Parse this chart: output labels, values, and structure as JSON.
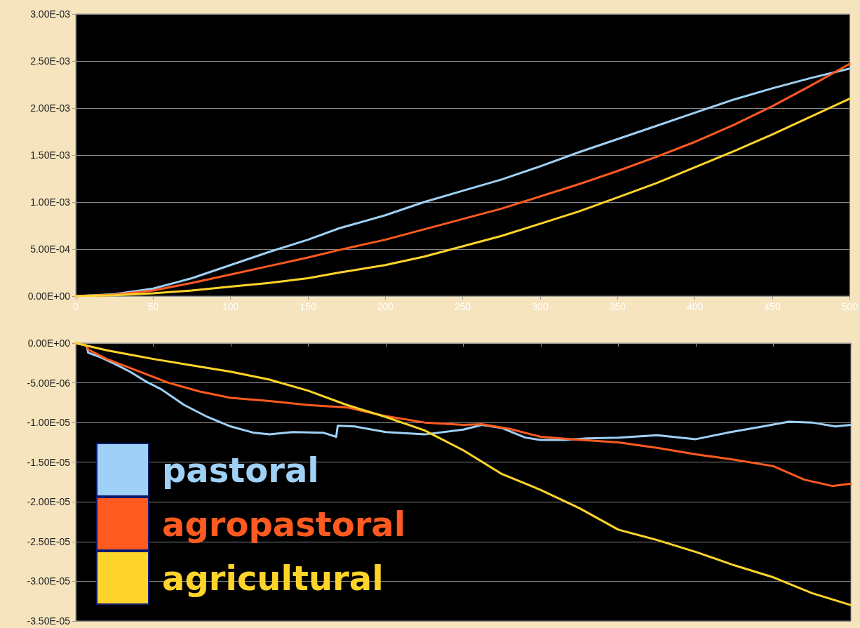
{
  "chart_data": [
    {
      "type": "line",
      "xlim": [
        0,
        500
      ],
      "xticks": [
        0,
        50,
        100,
        150,
        200,
        250,
        300,
        350,
        400,
        450,
        500
      ],
      "ylim": [
        0,
        0.003
      ],
      "yticks": [
        {
          "value": 0,
          "label": "0.00E+00"
        },
        {
          "value": 0.0005,
          "label": "5.00E-04"
        },
        {
          "value": 0.001,
          "label": "1.00E-03"
        },
        {
          "value": 0.0015,
          "label": "1.50E-03"
        },
        {
          "value": 0.002,
          "label": "2.00E-03"
        },
        {
          "value": 0.0025,
          "label": "2.50E-03"
        },
        {
          "value": 0.003,
          "label": "3.00E-03"
        }
      ],
      "grid": "y",
      "legend": false,
      "marker": "none",
      "line_style": "solid",
      "x": [
        0,
        25,
        50,
        75,
        100,
        125,
        150,
        170,
        200,
        225,
        250,
        275,
        300,
        325,
        350,
        375,
        400,
        425,
        450,
        475,
        500
      ],
      "series": [
        {
          "color": "#9fd0f5",
          "values": [
            0,
            2e-05,
            8e-05,
            0.00019,
            0.00033,
            0.00047,
            0.0006,
            0.00072,
            0.00086,
            0.001,
            0.00112,
            0.00124,
            0.00138,
            0.00153,
            0.00167,
            0.00181,
            0.00195,
            0.00209,
            0.00221,
            0.00232,
            0.00242
          ]
        },
        {
          "color": "#ff5a1f",
          "values": [
            0,
            1.5e-05,
            6e-05,
            0.00014,
            0.00023,
            0.00032,
            0.00041,
            0.00049,
            0.0006,
            0.00071,
            0.00082,
            0.00093,
            0.00106,
            0.00119,
            0.00133,
            0.00148,
            0.00164,
            0.00182,
            0.00202,
            0.00224,
            0.00247
          ]
        },
        {
          "color": "#ffd42a",
          "values": [
            0,
            1e-05,
            3e-05,
            6e-05,
            0.0001,
            0.00014,
            0.00019,
            0.00025,
            0.00033,
            0.00042,
            0.00053,
            0.00064,
            0.00077,
            0.0009,
            0.00105,
            0.0012,
            0.00137,
            0.00154,
            0.00172,
            0.00191,
            0.0021
          ]
        }
      ]
    },
    {
      "type": "line",
      "xlim": [
        0,
        500
      ],
      "xticks": [
        0,
        50,
        100,
        150,
        200,
        250,
        300,
        350,
        400,
        450,
        500
      ],
      "ylim": [
        -3.5e-05,
        0
      ],
      "yticks": [
        {
          "value": 0,
          "label": "0.00E+00"
        },
        {
          "value": -5e-06,
          "label": "-5.00E-06"
        },
        {
          "value": -1e-05,
          "label": "-1.00E-05"
        },
        {
          "value": -1.5e-05,
          "label": "-1.50E-05"
        },
        {
          "value": -2e-05,
          "label": "-2.00E-05"
        },
        {
          "value": -2.5e-05,
          "label": "-2.50E-05"
        },
        {
          "value": -3e-05,
          "label": "-3.00E-05"
        },
        {
          "value": -3.5e-05,
          "label": "-3.50E-05"
        }
      ],
      "tick_labels": "y",
      "grid": "y",
      "legend": "bottom left",
      "marker": "none",
      "line_style": "solid",
      "series": [
        {
          "name": "pastoral",
          "color": "#9fd0f5",
          "x": [
            0,
            7,
            8,
            15,
            25,
            35,
            45,
            55,
            70,
            85,
            100,
            115,
            125,
            140,
            160,
            168,
            169,
            180,
            200,
            225,
            250,
            262,
            275,
            290,
            300,
            315,
            330,
            350,
            375,
            400,
            420,
            440,
            460,
            475,
            490,
            500
          ],
          "values": [
            0,
            -3e-07,
            -1.2e-06,
            -1.7e-06,
            -2.6e-06,
            -3.6e-06,
            -4.8e-06,
            -5.8e-06,
            -7.8e-06,
            -9.3e-06,
            -1.05e-05,
            -1.13e-05,
            -1.15e-05,
            -1.12e-05,
            -1.13e-05,
            -1.18e-05,
            -1.04e-05,
            -1.05e-05,
            -1.12e-05,
            -1.15e-05,
            -1.09e-05,
            -1.03e-05,
            -1.07e-05,
            -1.19e-05,
            -1.22e-05,
            -1.22e-05,
            -1.2e-05,
            -1.19e-05,
            -1.16e-05,
            -1.21e-05,
            -1.13e-05,
            -1.06e-05,
            -9.9e-06,
            -1e-05,
            -1.05e-05,
            -1.03e-05
          ]
        },
        {
          "name": "agropastoral",
          "color": "#ff5a1f",
          "x": [
            0,
            7,
            8,
            20,
            40,
            60,
            80,
            100,
            125,
            150,
            175,
            200,
            225,
            250,
            262,
            280,
            300,
            320,
            350,
            375,
            400,
            425,
            450,
            470,
            488,
            500
          ],
          "values": [
            0,
            -3e-07,
            -8e-07,
            -2e-06,
            -3.5e-06,
            -5e-06,
            -6.1e-06,
            -6.9e-06,
            -7.3e-06,
            -7.8e-06,
            -8.1e-06,
            -9.2e-06,
            -1e-05,
            -1.03e-05,
            -1.02e-05,
            -1.08e-05,
            -1.18e-05,
            -1.21e-05,
            -1.25e-05,
            -1.32e-05,
            -1.4e-05,
            -1.47e-05,
            -1.55e-05,
            -1.72e-05,
            -1.8e-05,
            -1.77e-05
          ]
        },
        {
          "name": "agricultural",
          "color": "#ffd42a",
          "x": [
            0,
            20,
            50,
            75,
            100,
            125,
            150,
            175,
            200,
            225,
            250,
            275,
            300,
            325,
            350,
            375,
            400,
            425,
            450,
            475,
            500
          ],
          "values": [
            0,
            -9e-07,
            -2e-06,
            -2.8e-06,
            -3.6e-06,
            -4.6e-06,
            -6e-06,
            -7.8e-06,
            -9.3e-06,
            -1.1e-05,
            -1.35e-05,
            -1.65e-05,
            -1.85e-05,
            -2.08e-05,
            -2.35e-05,
            -2.48e-05,
            -2.63e-05,
            -2.8e-05,
            -2.95e-05,
            -3.15e-05,
            -3.3e-05
          ]
        }
      ]
    }
  ]
}
